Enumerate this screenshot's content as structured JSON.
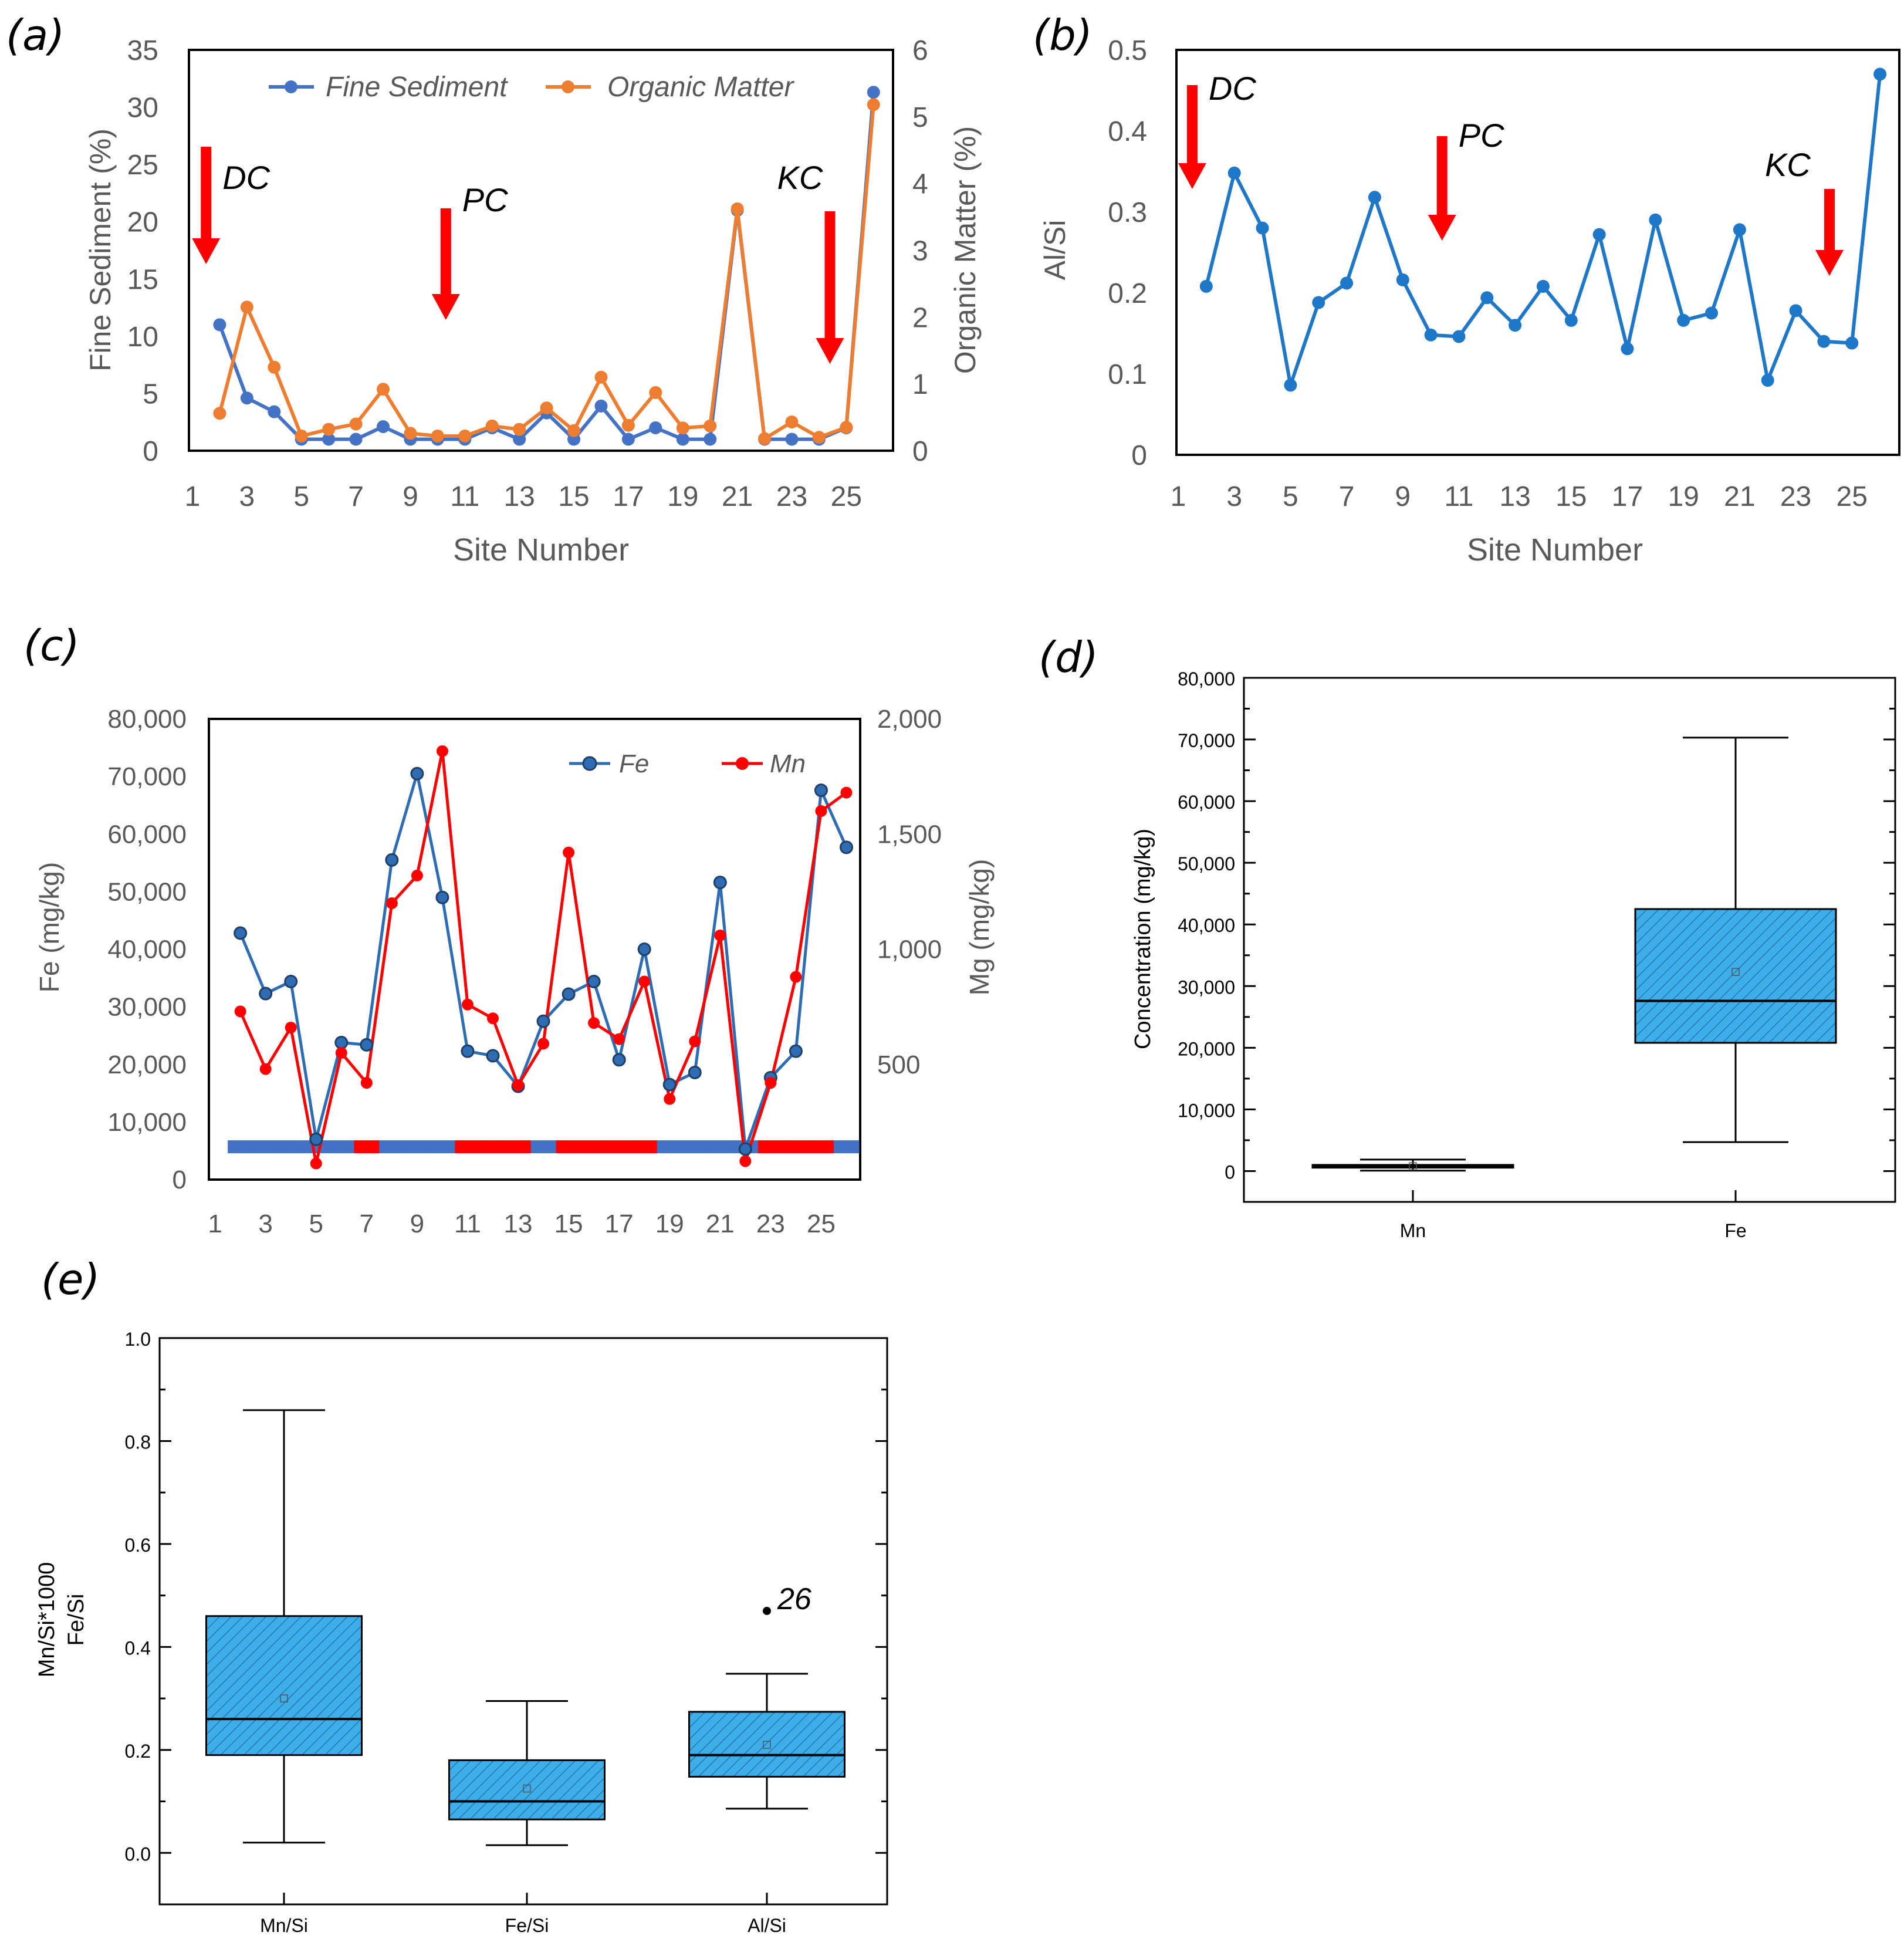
{
  "figure_colors": {
    "blue_line": "#4472C4",
    "orange_line": "#ED7D31",
    "b_line": "#1F77C8",
    "fe_line": "#2E6DB4",
    "mn_line": "#FF0000",
    "arrow": "#FF0000",
    "box_fill": "#3DAEE9",
    "axis_gray": "#595959"
  },
  "chart_data": [
    {
      "panel": "(a)",
      "type": "line",
      "xlabel": "Site Number",
      "ylabel": "Fine Sediment (%)",
      "y2label": "Organic Matter (%)",
      "x": [
        2,
        3,
        4,
        5,
        6,
        7,
        8,
        9,
        10,
        11,
        12,
        13,
        14,
        15,
        16,
        17,
        18,
        19,
        20,
        21,
        22,
        23,
        24,
        25,
        26
      ],
      "ylim": [
        0,
        35
      ],
      "y2lim": [
        0,
        6
      ],
      "xticks": [
        "1",
        "3",
        "5",
        "7",
        "9",
        "11",
        "13",
        "15",
        "17",
        "19",
        "21",
        "23",
        "25"
      ],
      "yticks": [
        "0",
        "5",
        "10",
        "15",
        "20",
        "25",
        "30",
        "35"
      ],
      "y2ticks": [
        "0",
        "1",
        "2",
        "3",
        "4",
        "5",
        "6"
      ],
      "series": [
        {
          "name": "Fine Sediment",
          "axis": "left",
          "values": [
            11,
            4.6,
            3.4,
            1,
            1,
            1,
            2.1,
            1,
            1,
            1,
            2,
            1,
            3.3,
            1,
            3.9,
            1,
            2,
            1,
            1,
            21,
            1,
            1,
            1,
            2,
            31.3
          ]
        },
        {
          "name": "Organic Matter",
          "axis": "right",
          "values": [
            0.56,
            2.15,
            1.25,
            0.22,
            0.32,
            0.4,
            0.92,
            0.26,
            0.22,
            0.22,
            0.37,
            0.32,
            0.64,
            0.3,
            1.1,
            0.38,
            0.87,
            0.34,
            0.37,
            3.62,
            0.18,
            0.43,
            0.2,
            0.35,
            5.18
          ]
        }
      ],
      "annotations": [
        {
          "text": "DC",
          "site": 1.5
        },
        {
          "text": "PC",
          "site": 10.3
        },
        {
          "text": "KC",
          "site": 24.4
        }
      ]
    },
    {
      "panel": "(b)",
      "type": "line",
      "xlabel": "Site Number",
      "ylabel": "Al/Si",
      "x": [
        2,
        3,
        4,
        5,
        6,
        7,
        8,
        9,
        10,
        11,
        12,
        13,
        14,
        15,
        16,
        17,
        18,
        19,
        20,
        21,
        22,
        23,
        24,
        25,
        26
      ],
      "ylim": [
        0,
        0.5
      ],
      "xticks": [
        "1",
        "3",
        "5",
        "7",
        "9",
        "11",
        "13",
        "15",
        "17",
        "19",
        "21",
        "23",
        "25"
      ],
      "yticks": [
        "0",
        "0.1",
        "0.2",
        "0.3",
        "0.4",
        "0.5"
      ],
      "series": [
        {
          "name": "Al/Si",
          "values": [
            0.208,
            0.348,
            0.28,
            0.086,
            0.188,
            0.212,
            0.318,
            0.216,
            0.148,
            0.146,
            0.194,
            0.16,
            0.208,
            0.166,
            0.272,
            0.131,
            0.29,
            0.166,
            0.175,
            0.278,
            0.092,
            0.178,
            0.14,
            0.138,
            0.47
          ]
        }
      ],
      "annotations": [
        {
          "text": "DC",
          "site": 1.5
        },
        {
          "text": "PC",
          "site": 10.4
        },
        {
          "text": "KC",
          "site": 24.2
        }
      ]
    },
    {
      "panel": "(c)",
      "type": "line",
      "ylabel": "Fe (mg/kg)",
      "y2label": "Mg (mg/kg)",
      "x": [
        2,
        3,
        4,
        5,
        6,
        7,
        8,
        9,
        10,
        11,
        12,
        13,
        14,
        15,
        16,
        17,
        18,
        19,
        20,
        21,
        22,
        23,
        24,
        25,
        26
      ],
      "ylim": [
        0,
        80000
      ],
      "y2lim": [
        0,
        2000
      ],
      "xticks": [
        "1",
        "3",
        "5",
        "7",
        "9",
        "11",
        "13",
        "15",
        "17",
        "19",
        "21",
        "23",
        "25"
      ],
      "yticks": [
        "0",
        "10,000",
        "20,000",
        "30,000",
        "40,000",
        "50,000",
        "60,000",
        "70,000",
        "80,000"
      ],
      "y2ticks": [
        "500",
        "1,000",
        "1,500",
        "2,000"
      ],
      "series": [
        {
          "name": "Fe",
          "axis": "left",
          "values": [
            42800,
            32300,
            34400,
            7000,
            23800,
            23400,
            55500,
            70500,
            49000,
            22300,
            21500,
            16200,
            27500,
            32200,
            34400,
            20800,
            40000,
            16500,
            18600,
            51600,
            5300,
            17700,
            22300,
            67600,
            57700
          ]
        },
        {
          "name": "Mn",
          "axis": "right",
          "values": [
            730,
            480,
            660,
            70,
            550,
            420,
            1200,
            1320,
            1860,
            760,
            700,
            410,
            590,
            1420,
            680,
            610,
            860,
            350,
            600,
            1060,
            80,
            420,
            880,
            1600,
            1680
          ]
        }
      ],
      "category_bar_colors": [
        "blue",
        "blue",
        "blue",
        "blue",
        "blue",
        "red",
        "blue",
        "blue",
        "blue",
        "red",
        "red",
        "red",
        "blue",
        "red",
        "red",
        "red",
        "red",
        "blue",
        "blue",
        "blue",
        "blue",
        "red",
        "red",
        "red",
        "blue"
      ]
    },
    {
      "panel": "(d)",
      "type": "box",
      "ylabel": "Concentration (mg/kg)",
      "categories": [
        "Mn",
        "Fe"
      ],
      "ylim": [
        -5000,
        80000
      ],
      "yticks": [
        "0",
        "10,000",
        "20,000",
        "30,000",
        "40,000",
        "50,000",
        "60,000",
        "70,000",
        "80,000"
      ],
      "boxes": [
        {
          "name": "Mn",
          "min": 70,
          "q1": 550,
          "median": 700,
          "q3": 1000,
          "max": 1860,
          "mean": 780
        },
        {
          "name": "Fe",
          "min": 4700,
          "q1": 20800,
          "median": 27600,
          "q3": 42500,
          "max": 70300,
          "mean": 32300
        }
      ]
    },
    {
      "panel": "(e)",
      "type": "box",
      "ylabel": "Mn/Si*1000",
      "ylabel2": "Fe/Si",
      "categories": [
        "Mn/Si",
        "Fe/Si",
        "Al/Si"
      ],
      "ylim": [
        -0.1,
        1.0
      ],
      "yticks": [
        "0.0",
        "0.2",
        "0.4",
        "0.6",
        "0.8",
        "1.0"
      ],
      "boxes": [
        {
          "name": "Mn/Si",
          "min": 0.02,
          "q1": 0.19,
          "median": 0.26,
          "q3": 0.46,
          "max": 0.86,
          "mean": 0.3
        },
        {
          "name": "Fe/Si",
          "min": 0.015,
          "q1": 0.065,
          "median": 0.1,
          "q3": 0.18,
          "max": 0.295,
          "mean": 0.125
        },
        {
          "name": "Al/Si",
          "min": 0.086,
          "q1": 0.148,
          "median": 0.19,
          "q3": 0.274,
          "max": 0.348,
          "mean": 0.21
        }
      ],
      "outliers": [
        {
          "category": "Al/Si",
          "value": 0.47,
          "label": "26"
        }
      ]
    }
  ]
}
